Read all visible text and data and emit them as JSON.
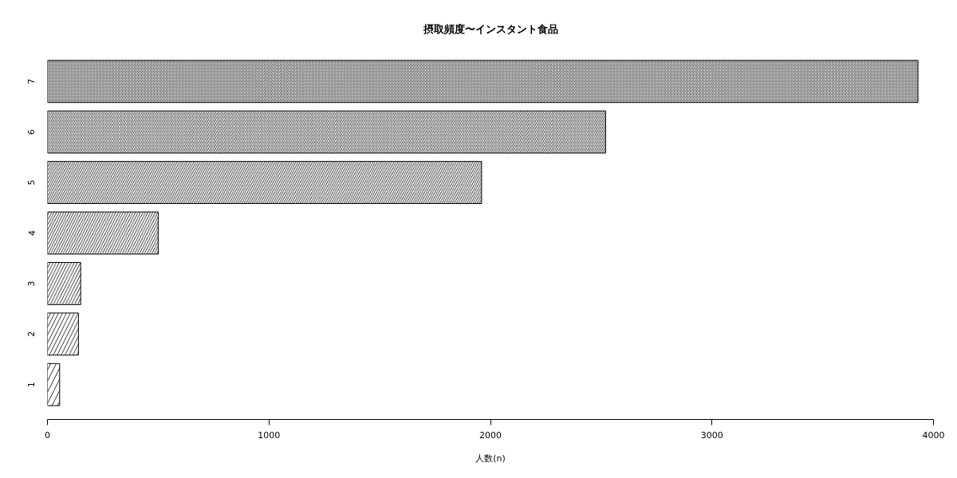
{
  "chart_data": {
    "type": "bar",
    "orientation": "horizontal",
    "title": "摂取頻度〜インスタント食品",
    "xlabel": "人数(n)",
    "categories": [
      "7",
      "6",
      "5",
      "4",
      "3",
      "2",
      "1"
    ],
    "values": [
      3930,
      2520,
      1960,
      500,
      150,
      140,
      55
    ],
    "color": "#000000",
    "xlim": [
      0,
      4000
    ],
    "xticks": [
      0,
      1000,
      2000,
      3000,
      4000
    ]
  }
}
